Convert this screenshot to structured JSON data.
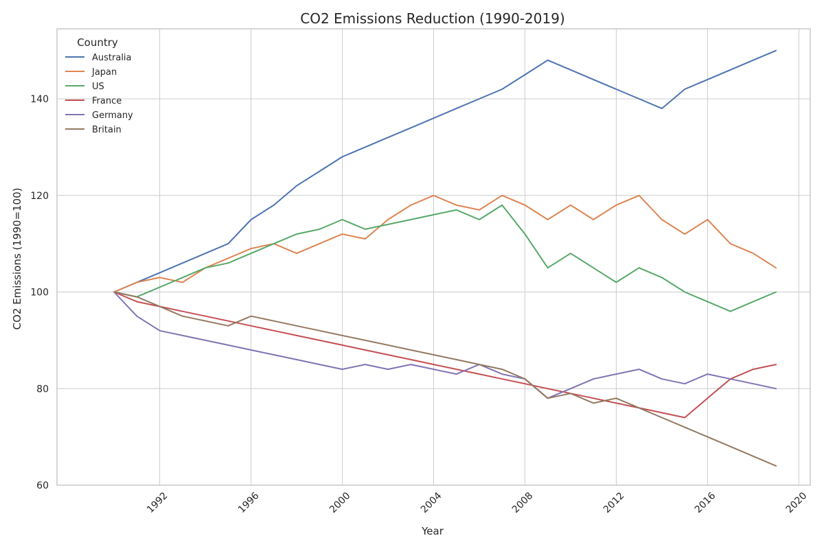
{
  "chart_data": {
    "type": "line",
    "title": "CO2 Emissions Reduction (1990-2019)",
    "xlabel": "Year",
    "ylabel": "CO2 Emissions (1990=100)",
    "xlim": [
      1987.5,
      2020.5
    ],
    "ylim": [
      60,
      154.5
    ],
    "xticks": [
      1992,
      1996,
      2000,
      2004,
      2008,
      2012,
      2016,
      2020
    ],
    "yticks": [
      60,
      80,
      100,
      120,
      140
    ],
    "grid": true,
    "legend": {
      "title": "Country",
      "placement": "top-left"
    },
    "x": [
      1990,
      1991,
      1992,
      1993,
      1994,
      1995,
      1996,
      1997,
      1998,
      1999,
      2000,
      2001,
      2002,
      2003,
      2004,
      2005,
      2006,
      2007,
      2008,
      2009,
      2010,
      2011,
      2012,
      2013,
      2014,
      2015,
      2016,
      2017,
      2018,
      2019
    ],
    "series": [
      {
        "name": "Australia",
        "color": "#4c72b0",
        "values": [
          100,
          102,
          104,
          106,
          108,
          110,
          115,
          118,
          122,
          125,
          128,
          130,
          132,
          134,
          136,
          138,
          140,
          142,
          145,
          148,
          146,
          144,
          142,
          140,
          138,
          142,
          144,
          146,
          148,
          150
        ]
      },
      {
        "name": "Japan",
        "color": "#dd8452",
        "values": [
          100,
          102,
          103,
          102,
          105,
          107,
          109,
          110,
          108,
          110,
          112,
          111,
          115,
          118,
          120,
          118,
          117,
          120,
          118,
          115,
          118,
          115,
          118,
          120,
          115,
          112,
          115,
          110,
          108,
          105
        ]
      },
      {
        "name": "US",
        "color": "#55a868",
        "values": [
          100,
          99,
          101,
          103,
          105,
          106,
          108,
          110,
          112,
          113,
          115,
          113,
          114,
          115,
          116,
          117,
          115,
          118,
          112,
          105,
          108,
          105,
          102,
          105,
          103,
          100,
          98,
          96,
          98,
          100
        ]
      },
      {
        "name": "France",
        "color": "#c44e52",
        "values": [
          100,
          98,
          97,
          96,
          95,
          94,
          93,
          92,
          91,
          90,
          89,
          88,
          87,
          86,
          85,
          84,
          83,
          82,
          81,
          80,
          79,
          78,
          77,
          76,
          75,
          74,
          78,
          82,
          84,
          85
        ]
      },
      {
        "name": "Germany",
        "color": "#8172b3",
        "values": [
          100,
          95,
          92,
          91,
          90,
          89,
          88,
          87,
          86,
          85,
          84,
          85,
          84,
          85,
          84,
          83,
          85,
          83,
          82,
          78,
          80,
          82,
          83,
          84,
          82,
          81,
          83,
          82,
          81,
          80
        ]
      },
      {
        "name": "Britain",
        "color": "#937860",
        "values": [
          100,
          99,
          97,
          95,
          94,
          93,
          95,
          94,
          93,
          92,
          91,
          90,
          89,
          88,
          87,
          86,
          85,
          84,
          82,
          78,
          79,
          77,
          78,
          76,
          74,
          72,
          70,
          68,
          66,
          64
        ]
      }
    ]
  }
}
